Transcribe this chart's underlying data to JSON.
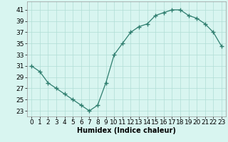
{
  "x": [
    0,
    1,
    2,
    3,
    4,
    5,
    6,
    7,
    8,
    9,
    10,
    11,
    12,
    13,
    14,
    15,
    16,
    17,
    18,
    19,
    20,
    21,
    22,
    23
  ],
  "y": [
    31,
    30,
    28,
    27,
    26,
    25,
    24,
    23,
    24,
    28,
    33,
    35,
    37,
    38,
    38.5,
    40,
    40.5,
    41,
    41,
    40,
    39.5,
    38.5,
    37,
    34.5
  ],
  "line_color": "#2e7d6e",
  "marker": "+",
  "marker_size": 4,
  "bg_color": "#d8f5f0",
  "grid_color": "#b0ddd5",
  "xlabel": "Humidex (Indice chaleur)",
  "xlim": [
    -0.5,
    23.5
  ],
  "ylim": [
    22,
    42.5
  ],
  "yticks": [
    23,
    25,
    27,
    29,
    31,
    33,
    35,
    37,
    39,
    41
  ],
  "xticks": [
    0,
    1,
    2,
    3,
    4,
    5,
    6,
    7,
    8,
    9,
    10,
    11,
    12,
    13,
    14,
    15,
    16,
    17,
    18,
    19,
    20,
    21,
    22,
    23
  ],
  "xlabel_fontsize": 7,
  "tick_fontsize": 6.5,
  "linewidth": 0.9
}
